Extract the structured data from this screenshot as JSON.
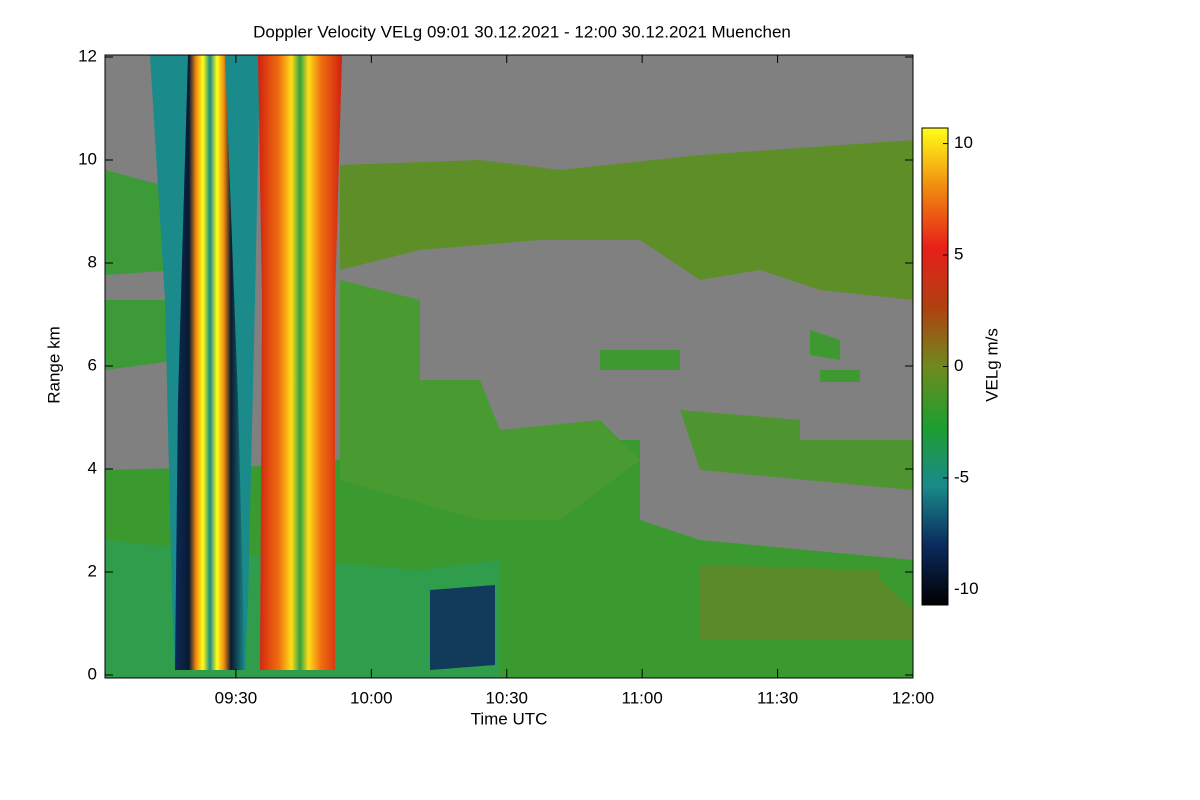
{
  "chart_data": {
    "type": "heatmap",
    "title": "Doppler Velocity VELg   09:01 30.12.2021 - 12:00 30.12.2021 Muenchen",
    "x_label": "Time UTC",
    "y_label": "Range km",
    "xlim": [
      "09:01",
      "12:00"
    ],
    "xticks": [
      "09:30",
      "10:00",
      "10:30",
      "11:00",
      "11:30",
      "12:00"
    ],
    "ylim": [
      0,
      12
    ],
    "yticks": [
      0,
      2,
      4,
      6,
      8,
      10,
      12
    ],
    "colorbar": {
      "label": "VELg m/s",
      "lim": [
        -10.7,
        10.7
      ],
      "ticks": [
        -10,
        -5,
        0,
        5,
        10
      ],
      "colors": [
        "#000000",
        "#0b2a5e",
        "#1a8a8a",
        "#1e9e2e",
        "#6f8a1e",
        "#b04010",
        "#e8201a",
        "#f08a10",
        "#ffff18"
      ]
    }
  }
}
